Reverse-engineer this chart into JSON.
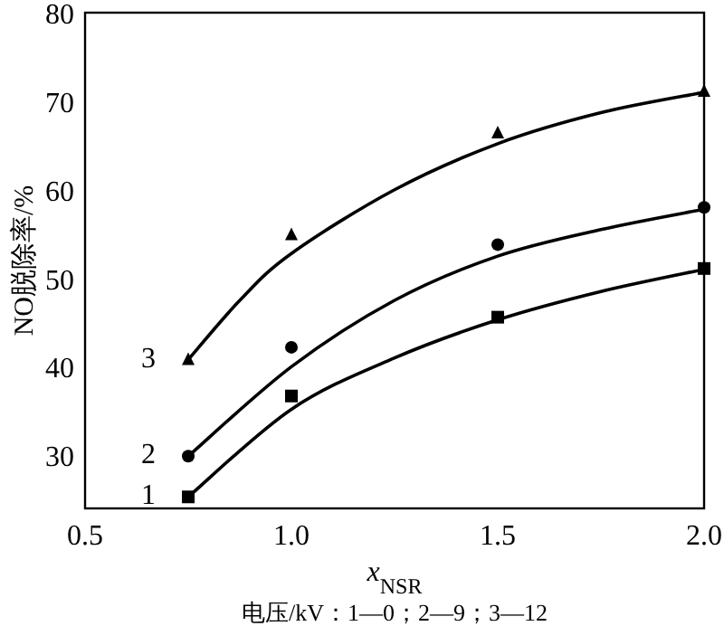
{
  "chart_data": {
    "type": "scatter",
    "xlabel": "*x*$_{NSR}$",
    "ylabel": "NO脱除率/%",
    "annotations": [
      "电压/kV：1—0；2—9；3—12"
    ],
    "xlim": [
      0.5,
      2.0
    ],
    "ylim": [
      24,
      80
    ],
    "xticks": [
      0.5,
      {
        "value": 1,
        "label": "1.0"
      },
      1.5,
      {
        "value": 2,
        "label": "2.0"
      }
    ],
    "yticks": [
      30,
      40,
      50,
      60,
      70,
      80
    ],
    "grid": false,
    "series": [
      {
        "name": "1",
        "marker": "square",
        "color": "#000000",
        "x": [
          0.75,
          1.0,
          1.5,
          2.0
        ],
        "values": [
          25.3,
          36.7,
          45.6,
          51.1
        ]
      },
      {
        "name": "2",
        "marker": "circle",
        "color": "#000000",
        "x": [
          0.75,
          1.0,
          1.5,
          2.0
        ],
        "values": [
          29.9,
          42.2,
          53.8,
          58.0
        ]
      },
      {
        "name": "3",
        "marker": "triangle",
        "color": "#000000",
        "x": [
          0.75,
          1.0,
          1.5,
          2.0
        ],
        "values": [
          40.8,
          54.9,
          66.4,
          71.1
        ]
      },
      {
        "type": "line",
        "marker": "none",
        "color": "#000000",
        "x": [
          0.75,
          1.0,
          1.25,
          1.5,
          1.75,
          2.0
        ],
        "values": [
          25.3,
          35.2,
          41.0,
          45.3,
          48.5,
          51.0
        ]
      },
      {
        "type": "line",
        "marker": "none",
        "color": "#000000",
        "x": [
          0.75,
          1.0,
          1.25,
          1.5,
          1.75,
          2.0
        ],
        "values": [
          29.9,
          40.0,
          47.5,
          52.5,
          55.5,
          57.8
        ]
      },
      {
        "type": "line",
        "marker": "none",
        "color": "#000000",
        "x": [
          0.75,
          0.875,
          1.0,
          1.25,
          1.5,
          1.75,
          2.0
        ],
        "values": [
          40.8,
          47.5,
          52.8,
          60.0,
          65.2,
          68.7,
          71.0
        ]
      }
    ]
  }
}
